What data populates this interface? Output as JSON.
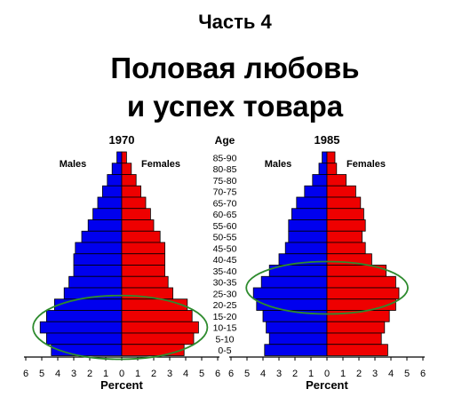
{
  "slide": {
    "part_label": "Часть 4",
    "title_line1": "Половая любовь",
    "title_line2": "и успех товара"
  },
  "colors": {
    "male": "#0000ee",
    "female": "#ee0000",
    "highlight_ellipse": "#2e8b2e",
    "axis": "#000000"
  },
  "chart_data": [
    {
      "type": "bar",
      "subtype": "population-pyramid",
      "title": "1970",
      "center_label": "Age",
      "age_groups": [
        "85-90",
        "80-85",
        "75-80",
        "70-75",
        "65-70",
        "60-65",
        "55-60",
        "50-55",
        "45-50",
        "40-45",
        "35-40",
        "30-35",
        "25-30",
        "20-25",
        "15-20",
        "10-15",
        "5-10",
        "0-5"
      ],
      "series": [
        {
          "name": "Males",
          "values": [
            0.3,
            0.6,
            0.9,
            1.2,
            1.5,
            1.8,
            2.1,
            2.5,
            2.9,
            3.0,
            3.0,
            3.3,
            3.6,
            4.2,
            4.7,
            5.1,
            4.7,
            4.4
          ]
        },
        {
          "name": "Females",
          "values": [
            0.3,
            0.6,
            0.9,
            1.2,
            1.5,
            1.8,
            2.0,
            2.4,
            2.7,
            2.7,
            2.7,
            2.9,
            3.2,
            4.1,
            4.4,
            4.8,
            4.5,
            3.9
          ]
        }
      ],
      "xlabel": "Percent",
      "xticks": [
        "6",
        "5",
        "4",
        "3",
        "2",
        "1",
        "0",
        "1",
        "2",
        "3",
        "4",
        "5",
        "6"
      ],
      "xlim": [
        -6,
        6
      ],
      "highlight": {
        "shape": "ellipse",
        "age_range": [
          "0-5",
          "20-25"
        ]
      }
    },
    {
      "type": "bar",
      "subtype": "population-pyramid",
      "title": "1985",
      "center_label": "Age",
      "age_groups": [
        "85-90",
        "80-85",
        "75-80",
        "70-75",
        "65-70",
        "60-65",
        "55-60",
        "50-55",
        "45-50",
        "40-45",
        "35-40",
        "30-35",
        "25-30",
        "20-25",
        "15-20",
        "10-15",
        "5-10",
        "0-5"
      ],
      "series": [
        {
          "name": "Males",
          "values": [
            0.3,
            0.5,
            0.9,
            1.4,
            1.9,
            2.2,
            2.4,
            2.4,
            2.6,
            3.0,
            3.6,
            4.1,
            4.6,
            4.4,
            4.0,
            3.8,
            3.6,
            3.9
          ]
        },
        {
          "name": "Females",
          "values": [
            0.5,
            0.6,
            1.2,
            1.8,
            2.1,
            2.3,
            2.4,
            2.2,
            2.4,
            2.8,
            3.7,
            4.3,
            4.5,
            4.3,
            3.9,
            3.6,
            3.4,
            3.8
          ]
        }
      ],
      "xlabel": "Percent",
      "xticks": [
        "6",
        "5",
        "4",
        "3",
        "2",
        "1",
        "0",
        "1",
        "2",
        "3",
        "4",
        "5",
        "6"
      ],
      "xlim": [
        -6,
        6
      ],
      "highlight": {
        "shape": "ellipse",
        "age_range": [
          "20-25",
          "35-40"
        ]
      }
    }
  ]
}
